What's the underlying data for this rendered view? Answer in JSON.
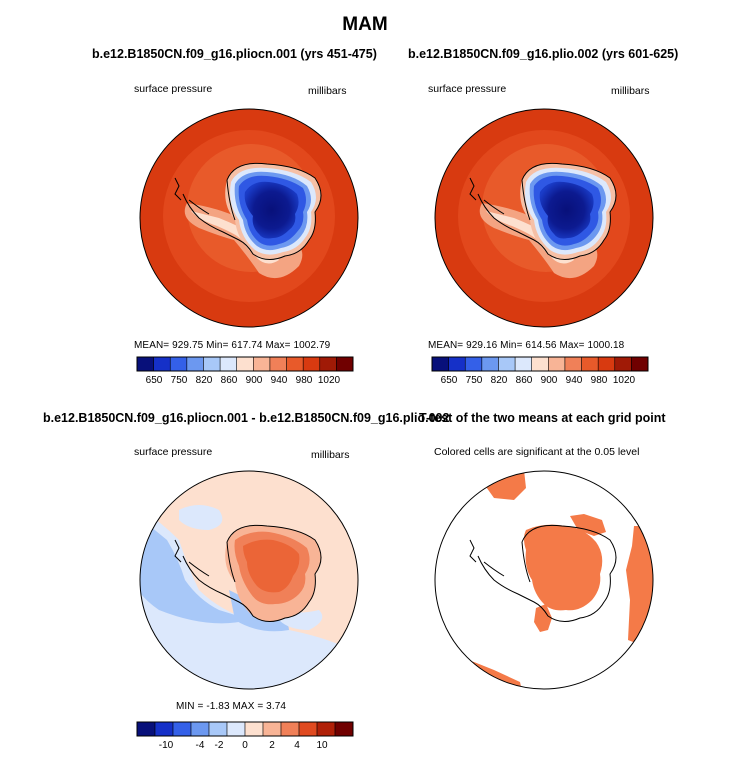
{
  "header": {
    "title": "MAM"
  },
  "panels": [
    {
      "title": "b.e12.B1850CN.f09_g16.pliocn.001 (yrs 451-475)",
      "variable": "surface pressure",
      "units": "millibars",
      "stats": "MEAN= 929.75   Min= 617.74   Max= 1002.79",
      "colorbar_ticks": [
        "650",
        "750",
        "820",
        "860",
        "900",
        "940",
        "980",
        "1020"
      ]
    },
    {
      "title": "b.e12.B1850CN.f09_g16.plio.002 (yrs 601-625)",
      "variable": "surface pressure",
      "units": "millibars",
      "stats": "MEAN= 929.16   Min= 614.56   Max= 1000.18",
      "colorbar_ticks": [
        "650",
        "750",
        "820",
        "860",
        "900",
        "940",
        "980",
        "1020"
      ]
    },
    {
      "title": "b.e12.B1850CN.f09_g16.pliocn.001 - b.e12.B1850CN.f09_g16.plio.002",
      "variable": "surface pressure",
      "units": "millibars",
      "stats": "MIN =   -1.83  MAX =     3.74",
      "colorbar_ticks": [
        "-10",
        "-4",
        "-2",
        "0",
        "2",
        "4",
        "10"
      ]
    },
    {
      "title": "T-test of the two means at each grid point",
      "note": "Colored cells are significant at the 0.05 level"
    }
  ],
  "colors": {
    "abs_scale": [
      "#08107a",
      "#1530c8",
      "#3460e8",
      "#6c98f0",
      "#a8c8f8",
      "#dce8fc",
      "#fde0cf",
      "#f8b496",
      "#f08058",
      "#e85a2a",
      "#d83a10",
      "#a01a06",
      "#700000"
    ],
    "diff_scale": [
      "#08107a",
      "#1530c8",
      "#3460e8",
      "#6c98f0",
      "#a8c8f8",
      "#dce8fc",
      "#fde0cf",
      "#f8b496",
      "#f08058",
      "#e04a20",
      "#b02008",
      "#700000"
    ],
    "significant": "#f47a48"
  }
}
